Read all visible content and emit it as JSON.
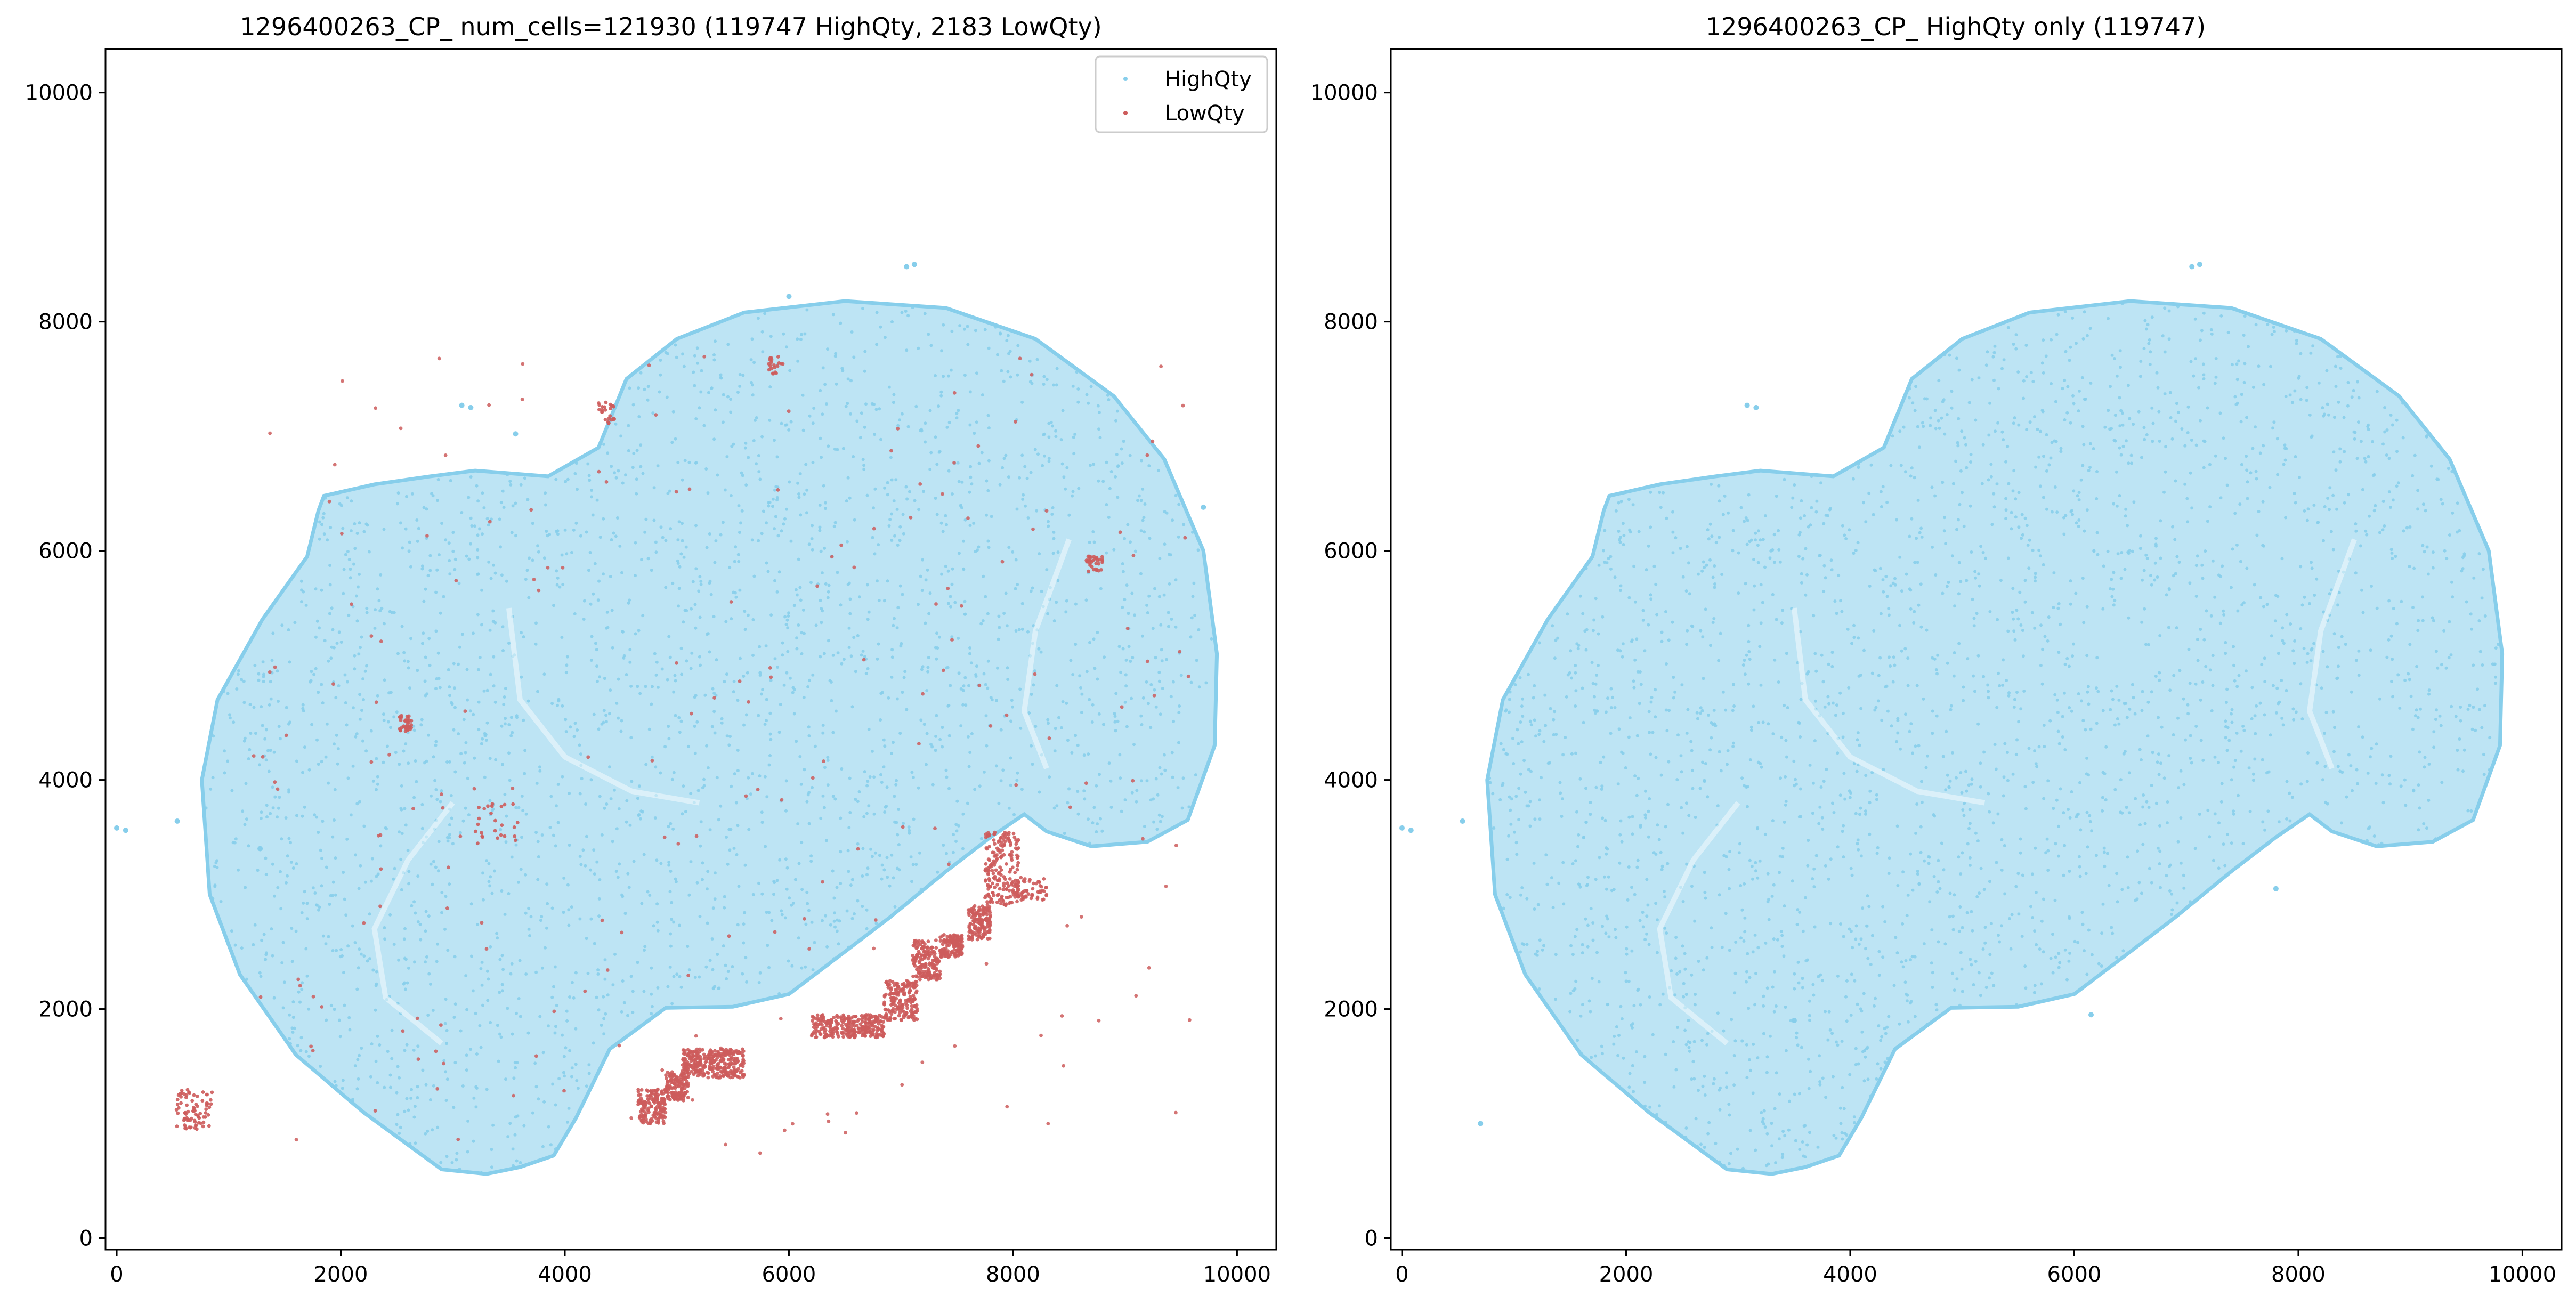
{
  "chart_data": [
    {
      "type": "scatter",
      "title": "1296400263_CP_ num_cells=121930 (119747 HighQty, 2183 LowQty)",
      "xlabel": "",
      "ylabel": "",
      "xlim": [
        -100,
        10350
      ],
      "ylim": [
        -100,
        10380
      ],
      "xticks": [
        0,
        2000,
        4000,
        6000,
        8000,
        10000
      ],
      "yticks": [
        0,
        2000,
        4000,
        6000,
        8000,
        10000
      ],
      "xtick_labels": [
        "0",
        "2000",
        "4000",
        "6000",
        "8000",
        "10000"
      ],
      "ytick_labels": [
        "0",
        "2000",
        "4000",
        "6000",
        "8000",
        "10000"
      ],
      "grid": false,
      "legend": {
        "position": "top-right",
        "entries": [
          "HighQty",
          "LowQty"
        ]
      },
      "series": [
        {
          "name": "HighQty",
          "color": "#87ceeb",
          "count": 119747,
          "outline": [
            [
              1850,
              6480
            ],
            [
              2300,
              6580
            ],
            [
              2800,
              6650
            ],
            [
              3200,
              6700
            ],
            [
              3850,
              6650
            ],
            [
              4300,
              6900
            ],
            [
              4550,
              7500
            ],
            [
              5000,
              7850
            ],
            [
              5600,
              8080
            ],
            [
              6500,
              8180
            ],
            [
              7400,
              8120
            ],
            [
              8200,
              7850
            ],
            [
              8900,
              7350
            ],
            [
              9350,
              6800
            ],
            [
              9700,
              6000
            ],
            [
              9820,
              5100
            ],
            [
              9800,
              4300
            ],
            [
              9560,
              3650
            ],
            [
              9200,
              3460
            ],
            [
              8700,
              3420
            ],
            [
              8300,
              3550
            ],
            [
              8100,
              3700
            ],
            [
              7800,
              3500
            ],
            [
              7400,
              3200
            ],
            [
              6900,
              2800
            ],
            [
              6500,
              2500
            ],
            [
              6000,
              2130
            ],
            [
              5500,
              2020
            ],
            [
              4900,
              2010
            ],
            [
              4400,
              1650
            ],
            [
              4100,
              1050
            ],
            [
              3900,
              720
            ],
            [
              3600,
              620
            ],
            [
              3300,
              560
            ],
            [
              2900,
              600
            ],
            [
              2200,
              1100
            ],
            [
              1600,
              1600
            ],
            [
              1100,
              2300
            ],
            [
              830,
              3000
            ],
            [
              760,
              4000
            ],
            [
              900,
              4700
            ],
            [
              1300,
              5400
            ],
            [
              1700,
              5950
            ],
            [
              1800,
              6350
            ]
          ],
          "stray_points": [
            [
              3080,
              7270
            ],
            [
              3160,
              7250
            ],
            [
              7050,
              8480
            ],
            [
              7120,
              8500
            ],
            [
              0,
              3580
            ],
            [
              80,
              3560
            ],
            [
              540,
              3640
            ],
            [
              1280,
              3400
            ],
            [
              6000,
              8220
            ],
            [
              3560,
              7020
            ],
            [
              9700,
              6380
            ]
          ]
        },
        {
          "name": "LowQty",
          "color": "#cd5c5c",
          "count": 2183,
          "clusters": [
            {
              "x": [
                4650,
                4900
              ],
              "y": [
                1000,
                1300
              ],
              "n": 160
            },
            {
              "x": [
                4900,
                5100
              ],
              "y": [
                1200,
                1450
              ],
              "n": 130
            },
            {
              "x": [
                5050,
                5600
              ],
              "y": [
                1400,
                1650
              ],
              "n": 330
            },
            {
              "x": [
                6200,
                6850
              ],
              "y": [
                1750,
                1950
              ],
              "n": 280
            },
            {
              "x": [
                6850,
                7150
              ],
              "y": [
                1900,
                2250
              ],
              "n": 190
            },
            {
              "x": [
                7100,
                7350
              ],
              "y": [
                2250,
                2600
              ],
              "n": 170
            },
            {
              "x": [
                7350,
                7550
              ],
              "y": [
                2450,
                2650
              ],
              "n": 140
            },
            {
              "x": [
                7600,
                7800
              ],
              "y": [
                2600,
                2900
              ],
              "n": 150
            },
            {
              "x": [
                7750,
                8050
              ],
              "y": [
                2900,
                3550
              ],
              "n": 190
            },
            {
              "x": [
                8000,
                8300
              ],
              "y": [
                2950,
                3150
              ],
              "n": 60
            },
            {
              "x": [
                530,
                860
              ],
              "y": [
                950,
                1300
              ],
              "n": 80
            },
            {
              "x": [
                2520,
                2640
              ],
              "y": [
                4420,
                4560
              ],
              "n": 35
            },
            {
              "x": [
                8650,
                8800
              ],
              "y": [
                5820,
                5960
              ],
              "n": 35
            },
            {
              "x": [
                4300,
                4450
              ],
              "y": [
                7100,
                7300
              ],
              "n": 25
            },
            {
              "x": [
                5820,
                5950
              ],
              "y": [
                7540,
                7700
              ],
              "n": 20
            },
            {
              "x": [
                3200,
                3600
              ],
              "y": [
                3400,
                3800
              ],
              "n": 25
            }
          ],
          "scatter_region": {
            "x": [
              1200,
              9600
            ],
            "y": [
              600,
              7700
            ],
            "n": 200
          }
        }
      ]
    },
    {
      "type": "scatter",
      "title": "1296400263_CP_ HighQty only (119747)",
      "xlabel": "",
      "ylabel": "",
      "xlim": [
        -100,
        10350
      ],
      "ylim": [
        -100,
        10380
      ],
      "xticks": [
        0,
        2000,
        4000,
        6000,
        8000,
        10000
      ],
      "yticks": [
        0,
        2000,
        4000,
        6000,
        8000,
        10000
      ],
      "xtick_labels": [
        "0",
        "2000",
        "4000",
        "6000",
        "8000",
        "10000"
      ],
      "ytick_labels": [
        "0",
        "2000",
        "4000",
        "6000",
        "8000",
        "10000"
      ],
      "grid": false,
      "series": [
        {
          "name": "HighQty",
          "color": "#87ceeb",
          "count": 119747,
          "outline": [
            [
              1850,
              6480
            ],
            [
              2300,
              6580
            ],
            [
              2800,
              6650
            ],
            [
              3200,
              6700
            ],
            [
              3850,
              6650
            ],
            [
              4300,
              6900
            ],
            [
              4550,
              7500
            ],
            [
              5000,
              7850
            ],
            [
              5600,
              8080
            ],
            [
              6500,
              8180
            ],
            [
              7400,
              8120
            ],
            [
              8200,
              7850
            ],
            [
              8900,
              7350
            ],
            [
              9350,
              6800
            ],
            [
              9700,
              6000
            ],
            [
              9820,
              5100
            ],
            [
              9800,
              4300
            ],
            [
              9560,
              3650
            ],
            [
              9200,
              3460
            ],
            [
              8700,
              3420
            ],
            [
              8300,
              3550
            ],
            [
              8100,
              3700
            ],
            [
              7800,
              3500
            ],
            [
              7400,
              3200
            ],
            [
              6900,
              2800
            ],
            [
              6500,
              2500
            ],
            [
              6000,
              2130
            ],
            [
              5500,
              2020
            ],
            [
              4900,
              2010
            ],
            [
              4400,
              1650
            ],
            [
              4100,
              1050
            ],
            [
              3900,
              720
            ],
            [
              3600,
              620
            ],
            [
              3300,
              560
            ],
            [
              2900,
              600
            ],
            [
              2200,
              1100
            ],
            [
              1600,
              1600
            ],
            [
              1100,
              2300
            ],
            [
              830,
              3000
            ],
            [
              760,
              4000
            ],
            [
              900,
              4700
            ],
            [
              1300,
              5400
            ],
            [
              1700,
              5950
            ],
            [
              1800,
              6350
            ]
          ],
          "stray_points": [
            [
              3080,
              7270
            ],
            [
              3160,
              7250
            ],
            [
              7050,
              8480
            ],
            [
              7120,
              8500
            ],
            [
              0,
              3580
            ],
            [
              80,
              3560
            ],
            [
              540,
              3640
            ],
            [
              700,
              1000
            ],
            [
              7800,
              3050
            ],
            [
              6150,
              1950
            ],
            [
              3500,
              1900
            ]
          ]
        }
      ]
    }
  ]
}
